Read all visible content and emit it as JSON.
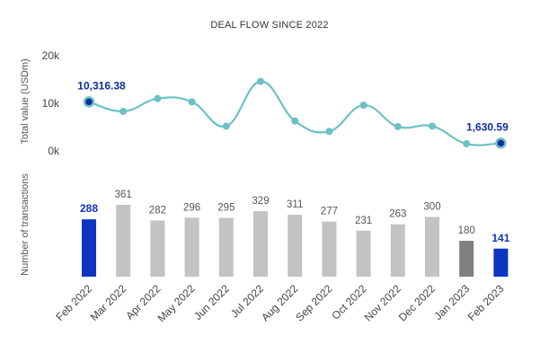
{
  "chart_data": {
    "title": "DEAL FLOW SINCE 2022",
    "categories": [
      "Feb 2022",
      "Mar 2022",
      "Apr 2022",
      "May 2022",
      "Jun 2022",
      "Jul 2022",
      "Aug 2022",
      "Sep 2022",
      "Oct 2022",
      "Nov 2022",
      "Dec 2022",
      "Jan 2023",
      "Feb 2023"
    ],
    "line": {
      "type": "line",
      "ylabel": "Total value (USDm)",
      "ylim": [
        0,
        20000
      ],
      "yticks": [
        {
          "value": 20000,
          "label": "20k"
        },
        {
          "value": 10000,
          "label": "10k"
        },
        {
          "value": 0,
          "label": "0k"
        }
      ],
      "values": [
        10316.38,
        8300,
        11000,
        10300,
        5200,
        14600,
        6300,
        4100,
        9600,
        5100,
        5200,
        1500,
        1630.59
      ],
      "labels": [
        {
          "index": 0,
          "text": "10,316.38"
        },
        {
          "index": 12,
          "text": "1,630.59"
        }
      ],
      "color": "#6cc0c6",
      "highlight_color": "#0d2e9e"
    },
    "bars": {
      "type": "bar",
      "ylabel": "Number of transactions",
      "values": [
        288,
        361,
        282,
        296,
        295,
        329,
        311,
        277,
        231,
        263,
        300,
        180,
        141
      ],
      "labels": [
        "288",
        "361",
        "282",
        "296",
        "295",
        "329",
        "311",
        "277",
        "231",
        "263",
        "300",
        "180",
        "141"
      ],
      "colors": [
        "#0b35c2",
        "#c3c3c3",
        "#c3c3c3",
        "#c3c3c3",
        "#c3c3c3",
        "#c3c3c3",
        "#c3c3c3",
        "#c3c3c3",
        "#c3c3c3",
        "#c3c3c3",
        "#c3c3c3",
        "#7f7f7f",
        "#0b35c2"
      ],
      "highlight_label_color": "#0b35c2",
      "normal_label_color": "#555555"
    },
    "grid": false,
    "legend": "none"
  }
}
